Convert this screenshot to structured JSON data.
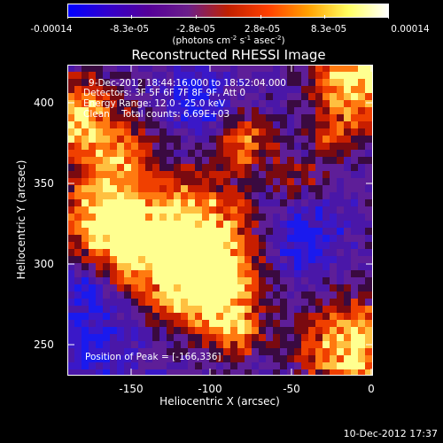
{
  "colorbar": {
    "ticks": [
      "-0.00014",
      "-8.3e-05",
      "-2.8e-05",
      "2.8e-05",
      "8.3e-05",
      "0.00014"
    ],
    "units": {
      "base": "(photons cm",
      "exp1": "-2",
      "mid1": " s",
      "exp2": "-1",
      "mid2": " asec",
      "exp3": "-2",
      "end": ")"
    },
    "gradient": [
      "#0000ff",
      "#3300cc",
      "#550099",
      "#6b1f8a",
      "#c02000",
      "#ff4000",
      "#ffa000",
      "#ffff60",
      "#ffffff"
    ]
  },
  "title": "Reconstructed RHESSI Image",
  "info": {
    "time_range": "9-Dec-2012 18:44:16.000 to 18:52:04.000",
    "detectors": "Detectors: 3F 5F 6F 7F 8F 9F, Att 0",
    "energy": "Energy Range: 12.0 - 25.0 keV",
    "clean": "Clean    Total counts: 6.69E+03",
    "peak": "Position of Peak = [-166,336]"
  },
  "axes": {
    "xlabel": "Heliocentric X (arcsec)",
    "ylabel": "Heliocentric Y (arcsec)",
    "xticks": [
      "-150",
      "-100",
      "-50",
      "0"
    ],
    "yticks": [
      "400",
      "350",
      "300",
      "250"
    ]
  },
  "timestamp": "10-Dec-2012 17:37"
}
